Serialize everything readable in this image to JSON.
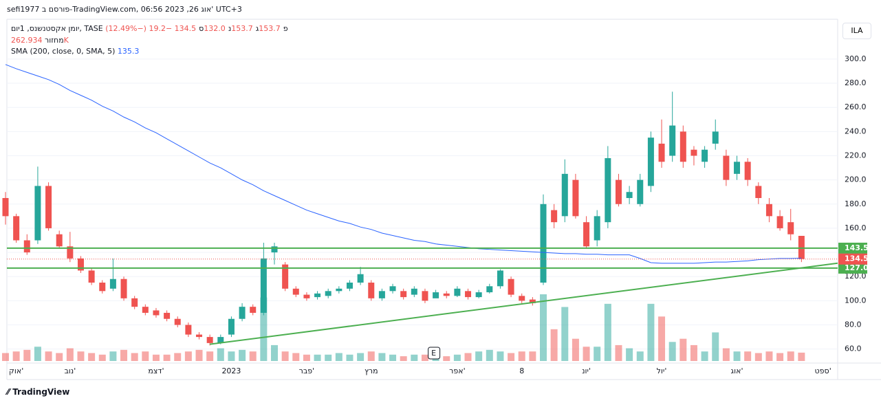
{
  "header": {
    "title": "sefi1977 פורסם ב-TradingView.com, 06:56 2023 ,26 אוג' UTC+3",
    "currency": "ILA",
    "brand": "TradingView",
    "earnings_marker": "E"
  },
  "legend": {
    "symbol": "יומן אקסטנשנס, 1יום, TASE",
    "ohlc": [
      {
        "key": "פ",
        "value": "153.7"
      },
      {
        "key": "ג",
        "value": "153.7"
      },
      {
        "key": "נ",
        "value": "132.0"
      },
      {
        "key": "ס",
        "value": "134.5"
      }
    ],
    "change": "−19.2 (−12.49%)",
    "volume_label": "מחזור",
    "volume_value": "262.934K",
    "sma_label": "SMA (200, close, 0, SMA, 5)",
    "sma_value": "135.3"
  },
  "chart_data": {
    "type": "candlestick",
    "categories": [
      null,
      "אוק'",
      null,
      null,
      null,
      null,
      "נוב'",
      null,
      null,
      null,
      null,
      null,
      null,
      null,
      "דצמ'",
      null,
      null,
      null,
      null,
      null,
      null,
      "2023",
      null,
      null,
      null,
      null,
      null,
      null,
      "פבר'",
      null,
      null,
      null,
      null,
      null,
      "מרץ",
      null,
      null,
      null,
      null,
      null,
      null,
      null,
      "אפר'",
      null,
      null,
      null,
      null,
      null,
      "8",
      null,
      null,
      null,
      null,
      null,
      "יונ'",
      null,
      null,
      null,
      null,
      null,
      null,
      "יול'",
      null,
      null,
      null,
      null,
      null,
      null,
      "אוג'",
      null,
      null,
      null,
      null,
      null,
      null,
      null,
      "ספט'"
    ],
    "open": [
      185,
      170,
      150,
      150,
      195,
      155,
      145,
      135,
      125,
      115,
      110,
      118,
      102,
      95,
      92,
      90,
      85,
      80,
      72,
      70,
      65,
      72,
      85,
      95,
      90,
      140,
      130,
      110,
      105,
      103,
      104,
      108,
      110,
      115,
      115,
      102,
      108,
      108,
      105,
      108,
      102,
      106,
      104,
      108,
      103,
      107,
      112,
      118,
      104,
      101,
      115,
      175,
      170,
      200,
      165,
      150,
      165,
      200,
      185,
      180,
      195,
      230,
      220,
      240,
      225,
      215,
      230,
      220,
      205,
      215,
      195,
      180,
      170,
      165,
      153.7,
      null,
      null
    ],
    "high": [
      190,
      172,
      155,
      211,
      198,
      158,
      157,
      137,
      127,
      117,
      135,
      120,
      104,
      97,
      94,
      92,
      87,
      82,
      74,
      72,
      72,
      87,
      98,
      97,
      148,
      148,
      132,
      112,
      107,
      108,
      110,
      112,
      117,
      128,
      117,
      110,
      114,
      110,
      112,
      110,
      109,
      108,
      112,
      110,
      109,
      114,
      126,
      120,
      106,
      103,
      188,
      180,
      217,
      205,
      170,
      175,
      228,
      205,
      195,
      205,
      240,
      250,
      273,
      245,
      228,
      228,
      250,
      225,
      220,
      218,
      198,
      185,
      175,
      176,
      153.7,
      null,
      null
    ],
    "low": [
      163,
      148,
      138,
      147,
      158,
      143,
      132,
      123,
      113,
      106,
      108,
      100,
      93,
      88,
      86,
      83,
      78,
      70,
      68,
      63,
      64,
      70,
      83,
      88,
      88,
      130,
      108,
      103,
      100,
      101,
      102,
      106,
      108,
      113,
      100,
      100,
      106,
      101,
      103,
      98,
      104,
      102,
      103,
      101,
      102,
      106,
      110,
      103,
      98,
      96,
      113,
      160,
      165,
      168,
      143,
      145,
      160,
      178,
      180,
      178,
      190,
      210,
      215,
      210,
      212,
      210,
      225,
      195,
      200,
      195,
      180,
      165,
      158,
      150,
      132,
      null,
      null
    ],
    "close": [
      170,
      150,
      140,
      195,
      160,
      145,
      135,
      125,
      115,
      108,
      118,
      102,
      95,
      90,
      88,
      85,
      80,
      72,
      70,
      65,
      70,
      85,
      95,
      90,
      135,
      145,
      110,
      105,
      102,
      106,
      108,
      110,
      115,
      122,
      102,
      108,
      112,
      103,
      110,
      100,
      107,
      104,
      110,
      103,
      107,
      112,
      125,
      105,
      100,
      98,
      180,
      165,
      205,
      170,
      145,
      170,
      218,
      180,
      190,
      200,
      235,
      215,
      245,
      215,
      220,
      225,
      240,
      200,
      215,
      200,
      185,
      170,
      160,
      155,
      134.5,
      null,
      null
    ],
    "volume": [
      250,
      300,
      350,
      450,
      300,
      250,
      400,
      300,
      250,
      200,
      300,
      350,
      250,
      300,
      200,
      200,
      250,
      300,
      350,
      300,
      400,
      300,
      350,
      300,
      2000,
      500,
      300,
      250,
      200,
      200,
      200,
      250,
      200,
      250,
      300,
      250,
      200,
      150,
      200,
      200,
      150,
      150,
      200,
      250,
      300,
      350,
      300,
      250,
      300,
      300,
      2100,
      1000,
      1700,
      700,
      450,
      450,
      1800,
      500,
      400,
      300,
      1800,
      1400,
      600,
      700,
      500,
      300,
      900,
      400,
      300,
      300,
      250,
      300,
      250,
      300,
      262.934,
      null,
      null
    ],
    "volume_ylim": [
      0,
      5000
    ],
    "sma": {
      "color": "#2962ff",
      "values": [
        295.5,
        292,
        289,
        286,
        283,
        279,
        274,
        270,
        266,
        261,
        257,
        252,
        248,
        243,
        239,
        234,
        229,
        224,
        219,
        214,
        210,
        205,
        200,
        196,
        191,
        187,
        183,
        179,
        175,
        172,
        169,
        166,
        164,
        161,
        159,
        156,
        154,
        152,
        150,
        149,
        147,
        146,
        145,
        144,
        143,
        142.5,
        142,
        141.5,
        141,
        140.5,
        140,
        139.5,
        139,
        139,
        138.5,
        138.5,
        138,
        138,
        138,
        135,
        131.5,
        131,
        131,
        131,
        131,
        131.5,
        132,
        132,
        132.5,
        133,
        134,
        134.5,
        135,
        135,
        135.3,
        null,
        null
      ]
    },
    "up_color": "#26a69a",
    "down_color": "#ef5350",
    "ylim": [
      49,
      321
    ],
    "yticks": [
      {
        "value": 60,
        "label": "60.0"
      },
      {
        "value": 80,
        "label": "80.0"
      },
      {
        "value": 100,
        "label": "100.0"
      },
      {
        "value": 120,
        "label": "120.0"
      },
      {
        "value": 140,
        "label": "140.0"
      },
      {
        "value": 160,
        "label": "160.0"
      },
      {
        "value": 180,
        "label": "180.0"
      },
      {
        "value": 200,
        "label": "200.0"
      },
      {
        "value": 220,
        "label": "220.0"
      },
      {
        "value": 240,
        "label": "240.0"
      },
      {
        "value": 260,
        "label": "260.0"
      },
      {
        "value": 280,
        "label": "280.0"
      },
      {
        "value": 300,
        "label": "300.0"
      }
    ],
    "levels": [
      {
        "value": 143.5,
        "label": "143.5",
        "color": "#4caf50"
      },
      {
        "value": 127,
        "label": "127.0",
        "color": "#4caf50"
      }
    ],
    "last_price": {
      "value": 134.5,
      "label": "134.5",
      "color": "#ef5350"
    },
    "trendline": {
      "color": "#4caf50",
      "points": [
        [
          19,
          64
        ],
        [
          76,
          129.5
        ]
      ]
    },
    "earnings_index": 40
  }
}
